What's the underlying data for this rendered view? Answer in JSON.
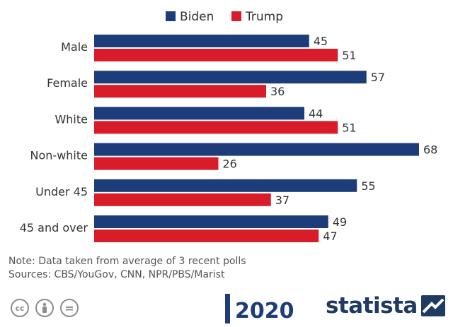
{
  "chart_data": {
    "type": "bar",
    "orientation": "horizontal",
    "categories": [
      "Male",
      "Female",
      "White",
      "Non-white",
      "Under 45",
      "45 and over"
    ],
    "series": [
      {
        "name": "Biden",
        "color": "#1c3c7a",
        "values": [
          45,
          57,
          44,
          68,
          55,
          49
        ]
      },
      {
        "name": "Trump",
        "color": "#d91c2a",
        "values": [
          51,
          36,
          51,
          26,
          37,
          47
        ]
      }
    ],
    "title": "",
    "xlabel": "",
    "ylabel": "",
    "xlim": [
      0,
      68
    ],
    "grid": false,
    "legend": "top-center",
    "data_labels": true
  },
  "note": "Note: Data taken from average of 3 recent polls",
  "sources": "Sources: CBS/YouGov, CNN, NPR/PBS/Marist",
  "footer": {
    "license_icons": [
      "cc-icon",
      "person-icon",
      "equals-icon"
    ],
    "cc_glyph": "cc",
    "equals_glyph": "=",
    "election_logo_text": "2020",
    "brand": "statista"
  }
}
